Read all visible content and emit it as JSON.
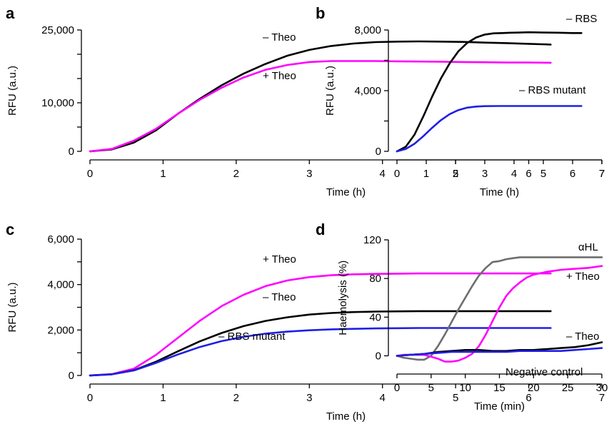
{
  "colors": {
    "black": "#000000",
    "magenta": "#ff00ff",
    "blue": "#1f1fe6",
    "grey": "#6e6e6e"
  },
  "chart_data": [
    {
      "panel_label": "a",
      "type": "line",
      "xlabel": "Time (h)",
      "ylabel": "RFU (a.u.)",
      "xlim": [
        0,
        7
      ],
      "ylim": [
        0,
        25000
      ],
      "xticks": [
        0,
        1,
        2,
        3,
        4,
        5,
        6,
        7
      ],
      "yticks": [
        0,
        5000,
        10000,
        15000,
        20000,
        25000
      ],
      "ytick_labels": [
        "0",
        "",
        "10,000",
        "",
        "",
        "25,000"
      ],
      "series": [
        {
          "name": "– Theo",
          "color": "black",
          "x": [
            0,
            0.3,
            0.6,
            0.9,
            1.2,
            1.5,
            1.8,
            2.1,
            2.4,
            2.7,
            3.0,
            3.3,
            3.6,
            3.9,
            4.2,
            4.5,
            4.8,
            5.1,
            5.4,
            5.7,
            6.0,
            6.3
          ],
          "y": [
            0,
            400,
            1800,
            4300,
            7700,
            10800,
            13600,
            16000,
            18000,
            19700,
            20900,
            21700,
            22200,
            22500,
            22600,
            22650,
            22600,
            22550,
            22400,
            22300,
            22150,
            22000
          ]
        },
        {
          "name": "+ Theo",
          "color": "magenta",
          "x": [
            0,
            0.3,
            0.6,
            0.9,
            1.2,
            1.5,
            1.8,
            2.1,
            2.4,
            2.7,
            3.0,
            3.3,
            3.6,
            3.9,
            4.2,
            4.5,
            4.8,
            5.1,
            5.4,
            5.7,
            6.0,
            6.3
          ],
          "y": [
            0,
            500,
            2200,
            4600,
            7700,
            10600,
            13100,
            15200,
            16800,
            17800,
            18400,
            18600,
            18600,
            18600,
            18550,
            18500,
            18450,
            18400,
            18350,
            18300,
            18300,
            18250
          ]
        }
      ]
    },
    {
      "panel_label": "b",
      "type": "line",
      "xlabel": "Time (h)",
      "ylabel": "RFU (a.u.)",
      "xlim": [
        0,
        7
      ],
      "ylim": [
        0,
        8000
      ],
      "xticks": [
        0,
        1,
        2,
        3,
        4,
        5,
        6,
        7
      ],
      "yticks": [
        0,
        2000,
        4000,
        6000,
        8000
      ],
      "ytick_labels": [
        "0",
        "",
        "4,000",
        "",
        "8,000"
      ],
      "series": [
        {
          "name": "– RBS",
          "color": "black",
          "x": [
            0,
            0.3,
            0.6,
            0.9,
            1.2,
            1.5,
            1.8,
            2.1,
            2.4,
            2.7,
            3.0,
            3.3,
            3.6,
            3.9,
            4.2,
            4.5,
            5.0,
            5.5,
            6.0,
            6.3
          ],
          "y": [
            0,
            300,
            1100,
            2300,
            3600,
            4800,
            5800,
            6600,
            7150,
            7500,
            7700,
            7780,
            7800,
            7820,
            7830,
            7850,
            7830,
            7820,
            7800,
            7800
          ]
        },
        {
          "name": "– RBS mutant",
          "color": "blue",
          "x": [
            0,
            0.3,
            0.6,
            0.9,
            1.2,
            1.5,
            1.8,
            2.1,
            2.4,
            2.7,
            3.0,
            3.5,
            4.0,
            4.5,
            5.0,
            5.5,
            6.0,
            6.3
          ],
          "y": [
            0,
            150,
            500,
            1000,
            1550,
            2050,
            2450,
            2720,
            2880,
            2950,
            2980,
            2990,
            2990,
            2990,
            2990,
            2990,
            2990,
            2990
          ]
        }
      ]
    },
    {
      "panel_label": "c",
      "type": "line",
      "xlabel": "Time (h)",
      "ylabel": "RFU (a.u.)",
      "xlim": [
        0,
        7
      ],
      "ylim": [
        0,
        6000
      ],
      "xticks": [
        0,
        1,
        2,
        3,
        4,
        5,
        6,
        7
      ],
      "yticks": [
        0,
        1000,
        2000,
        3000,
        4000,
        5000,
        6000
      ],
      "ytick_labels": [
        "0",
        "",
        "2,000",
        "",
        "4,000",
        "",
        "6,000"
      ],
      "series": [
        {
          "name": "+ Theo",
          "color": "magenta",
          "x": [
            0,
            0.3,
            0.6,
            0.9,
            1.2,
            1.5,
            1.8,
            2.1,
            2.4,
            2.7,
            3.0,
            3.3,
            3.6,
            3.9,
            4.2,
            4.5,
            5.0,
            5.5,
            6.0,
            6.3
          ],
          "y": [
            0,
            60,
            300,
            900,
            1650,
            2400,
            3050,
            3550,
            3930,
            4180,
            4330,
            4410,
            4450,
            4470,
            4480,
            4490,
            4490,
            4490,
            4490,
            4490
          ]
        },
        {
          "name": "– Theo",
          "color": "black",
          "x": [
            0,
            0.3,
            0.6,
            0.9,
            1.2,
            1.5,
            1.8,
            2.1,
            2.4,
            2.7,
            3.0,
            3.3,
            3.6,
            3.9,
            4.2,
            4.5,
            5.0,
            5.5,
            6.0,
            6.3
          ],
          "y": [
            0,
            50,
            230,
            600,
            1060,
            1500,
            1870,
            2170,
            2400,
            2560,
            2680,
            2750,
            2790,
            2810,
            2820,
            2830,
            2830,
            2830,
            2830,
            2830
          ]
        },
        {
          "name": "– RBS mutant",
          "color": "blue",
          "x": [
            0,
            0.3,
            0.6,
            0.9,
            1.2,
            1.5,
            1.8,
            2.1,
            2.4,
            2.7,
            3.0,
            3.3,
            3.6,
            3.9,
            4.2,
            4.5,
            5.0,
            5.5,
            6.0,
            6.3
          ],
          "y": [
            0,
            50,
            220,
            550,
            920,
            1250,
            1510,
            1700,
            1840,
            1930,
            1990,
            2030,
            2050,
            2070,
            2080,
            2090,
            2090,
            2090,
            2090,
            2090
          ]
        }
      ]
    },
    {
      "panel_label": "d",
      "type": "line",
      "xlabel": "Time (min)",
      "ylabel": "Haemolysis (%)",
      "xlim": [
        0,
        30
      ],
      "ylim": [
        -10,
        120
      ],
      "xticks": [
        0,
        5,
        10,
        15,
        20,
        25,
        30
      ],
      "yticks": [
        0,
        40,
        80,
        120
      ],
      "ytick_labels": [
        "0",
        "40",
        "80",
        "120"
      ],
      "series": [
        {
          "name": "αHL",
          "color": "grey",
          "x": [
            0,
            1,
            2,
            3,
            4,
            5,
            6,
            7,
            8,
            9,
            10,
            11,
            12,
            13,
            13.5,
            14,
            15,
            16,
            17,
            18,
            20,
            22,
            25,
            28,
            30
          ],
          "y": [
            0,
            -2,
            -3,
            -4,
            -4,
            0,
            10,
            22,
            35,
            48,
            60,
            72,
            83,
            91,
            94,
            97,
            98,
            100,
            101,
            102,
            102,
            102,
            102,
            102,
            102
          ]
        },
        {
          "name": "+ Theo",
          "color": "magenta",
          "x": [
            0,
            1,
            2,
            3,
            4,
            5,
            6,
            7,
            8,
            9,
            10,
            11,
            12,
            13,
            14,
            15,
            16,
            17,
            18,
            19,
            20,
            22,
            24,
            26,
            28,
            30
          ],
          "y": [
            0,
            1,
            1,
            1,
            1,
            -1,
            -3,
            -6,
            -6,
            -5,
            -2,
            2,
            10,
            22,
            36,
            50,
            62,
            70,
            76,
            81,
            84,
            87,
            89,
            90,
            91,
            93
          ]
        },
        {
          "name": "– Theo",
          "color": "black",
          "x": [
            0,
            2,
            4,
            6,
            8,
            10,
            12,
            14,
            16,
            18,
            20,
            22,
            24,
            26,
            28,
            30
          ],
          "y": [
            0,
            1,
            2,
            4,
            5,
            6,
            6,
            5,
            5,
            6,
            6,
            7,
            8,
            9,
            11,
            14
          ]
        },
        {
          "name": "Negative control",
          "color": "blue",
          "x": [
            0,
            2,
            4,
            6,
            8,
            10,
            12,
            14,
            16,
            18,
            20,
            22,
            24,
            26,
            28,
            30
          ],
          "y": [
            0,
            1,
            2,
            3,
            4,
            4,
            4,
            4,
            4,
            5,
            5,
            5,
            5,
            6,
            7,
            8
          ]
        }
      ]
    }
  ]
}
